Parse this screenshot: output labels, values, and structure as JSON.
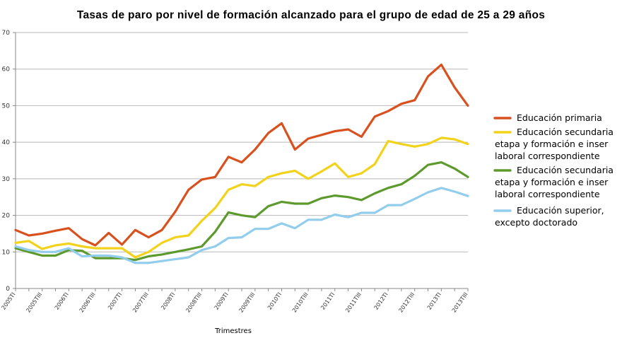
{
  "chart_data": {
    "type": "line",
    "title": "Tasas de paro por nivel de formación alcanzado para el grupo de edad de 25 a 29 años",
    "xlabel": "Trimestres",
    "ylabel": "",
    "ylim": [
      0,
      70
    ],
    "yticks": [
      "0",
      "10",
      "20",
      "30",
      "40",
      "50",
      "60",
      "70"
    ],
    "x_tick_labels": [
      "2005TI",
      "2005TIII",
      "2006TI",
      "2006TIII",
      "2007TI",
      "2007TIII",
      "2008TI",
      "2008TIII",
      "2009TI",
      "2009TIII",
      "2010TI",
      "2010TIII",
      "2011TI",
      "2011TIII",
      "2012TI",
      "2012TIII",
      "2013TI",
      "2013TIII"
    ],
    "grid": "horizontal",
    "legend_position": "right",
    "series": [
      {
        "name": "Educación primaria",
        "legend_lines": [
          "Educación primaria"
        ],
        "color": "#d9501f",
        "values": [
          16,
          14.5,
          15,
          15.8,
          16.5,
          13.5,
          11.8,
          15.2,
          12,
          16,
          14,
          16,
          21,
          27,
          29.8,
          30.5,
          36,
          34.5,
          38,
          42.5,
          45.2,
          38,
          41,
          42,
          43,
          43.5,
          41.5,
          47,
          48.5,
          50.5,
          51.5,
          58,
          61.2,
          55,
          50
        ]
      },
      {
        "name": "Educación secundaria etapa y formación e inser laboral correspondiente",
        "legend_lines": [
          "Educación secundaria",
          "etapa y formación e inser",
          "laboral correspondiente"
        ],
        "color": "#f2d21b",
        "values": [
          12.5,
          13,
          10.8,
          11.8,
          12.3,
          11.5,
          11,
          11,
          11,
          8.5,
          10,
          12.5,
          14,
          14.5,
          18.5,
          22,
          27,
          28.5,
          28,
          30.5,
          31.5,
          32.2,
          30,
          32,
          34.2,
          30.5,
          31.5,
          34,
          40.3,
          39.5,
          38.8,
          39.5,
          41.2,
          40.8,
          39.5
        ]
      },
      {
        "name": "Educación secundaria etapa y formación e inser laboral correspondiente",
        "legend_lines": [
          "Educación secundaria",
          "etapa y formación e inser",
          "laboral correspondiente"
        ],
        "color": "#5d9a2d",
        "values": [
          11,
          10,
          9,
          9,
          10.5,
          10.3,
          8.3,
          8.3,
          8.3,
          7.8,
          8.8,
          9.3,
          10,
          10.7,
          11.5,
          15.5,
          20.8,
          20,
          19.5,
          22.5,
          23.7,
          23.2,
          23.2,
          24.7,
          25.4,
          25,
          24.2,
          26,
          27.5,
          28.5,
          30.8,
          33.8,
          34.5,
          32.8,
          30.5
        ]
      },
      {
        "name": "Educación superior, excepto doctorado",
        "legend_lines": [
          "Educación superior,",
          "excepto doctorado"
        ],
        "color": "#92cdee",
        "values": [
          11.5,
          10.5,
          10,
          10,
          11,
          8.8,
          9,
          9,
          8.5,
          7,
          7,
          7.5,
          8,
          8.5,
          10.5,
          11.5,
          13.8,
          14,
          16.3,
          16.3,
          17.8,
          16.5,
          18.8,
          18.8,
          20.2,
          19.5,
          20.7,
          20.7,
          22.8,
          22.8,
          24.5,
          26.3,
          27.5,
          26.5,
          25.3
        ]
      }
    ]
  }
}
